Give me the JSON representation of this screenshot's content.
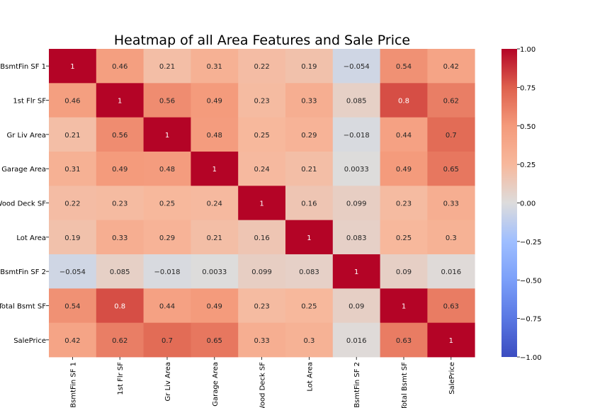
{
  "chart_data": {
    "type": "heatmap",
    "title": "Heatmap of all Area Features and Sale Price",
    "rows": [
      "BsmtFin SF 1",
      "1st Flr SF",
      "Gr Liv Area",
      "Garage Area",
      "Wood Deck SF",
      "Lot Area",
      "BsmtFin SF 2",
      "Total Bsmt SF",
      "SalePrice"
    ],
    "columns": [
      "BsmtFin SF 1",
      "1st Flr SF",
      "Gr Liv Area",
      "Garage Area",
      "Wood Deck SF",
      "Lot Area",
      "BsmtFin SF 2",
      "Total Bsmt SF",
      "SalePrice"
    ],
    "values": [
      [
        1,
        0.46,
        0.21,
        0.31,
        0.22,
        0.19,
        -0.054,
        0.54,
        0.42
      ],
      [
        0.46,
        1,
        0.56,
        0.49,
        0.23,
        0.33,
        0.085,
        0.8,
        0.62
      ],
      [
        0.21,
        0.56,
        1,
        0.48,
        0.25,
        0.29,
        -0.018,
        0.44,
        0.7
      ],
      [
        0.31,
        0.49,
        0.48,
        1,
        0.24,
        0.21,
        0.0033,
        0.49,
        0.65
      ],
      [
        0.22,
        0.23,
        0.25,
        0.24,
        1,
        0.16,
        0.099,
        0.23,
        0.33
      ],
      [
        0.19,
        0.33,
        0.29,
        0.21,
        0.16,
        1,
        0.083,
        0.25,
        0.3
      ],
      [
        -0.054,
        0.085,
        -0.018,
        0.0033,
        0.099,
        0.083,
        1,
        0.09,
        0.016
      ],
      [
        0.54,
        0.8,
        0.44,
        0.49,
        0.23,
        0.25,
        0.09,
        1,
        0.63
      ],
      [
        0.42,
        0.62,
        0.7,
        0.65,
        0.33,
        0.3,
        0.016,
        0.63,
        1
      ]
    ],
    "colorscale": {
      "name": "coolwarm",
      "min": -1,
      "max": 1,
      "ticks": [
        "1.00",
        "0.75",
        "0.50",
        "0.25",
        "0.00",
        "−0.25",
        "−0.50",
        "−0.75",
        "−1.00"
      ]
    },
    "grid": false
  }
}
